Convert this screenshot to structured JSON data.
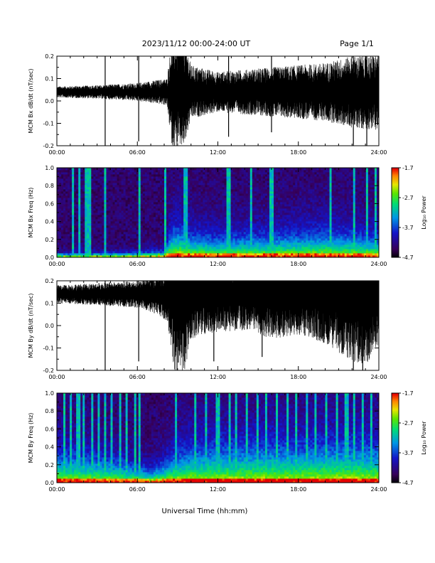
{
  "header": {
    "title": "2023/11/12  00:00-24:00 UT",
    "page": "Page 1/1"
  },
  "xlabel": "Universal Time (hh:mm)",
  "chart_data": [
    {
      "type": "line",
      "ylabel": "MCM Bx dB/dt (nT/sec)",
      "xlim": [
        0,
        24
      ],
      "ylim": [
        -0.2,
        0.2
      ],
      "x_ticks": [
        "00:00",
        "06:00",
        "12:00",
        "18:00",
        "24:00"
      ],
      "y_ticks": [
        "0.2",
        "0.1",
        "0.0",
        "-0.1",
        "-0.2"
      ],
      "baseline": 0.04,
      "envelope": [
        [
          0,
          0.025
        ],
        [
          3,
          0.03
        ],
        [
          6,
          0.04
        ],
        [
          8.2,
          0.06
        ],
        [
          8.6,
          0.25
        ],
        [
          9.5,
          0.25
        ],
        [
          10,
          0.12
        ],
        [
          12,
          0.09
        ],
        [
          14,
          0.1
        ],
        [
          16,
          0.11
        ],
        [
          18,
          0.12
        ],
        [
          20,
          0.13
        ],
        [
          22,
          0.16
        ],
        [
          24,
          0.17
        ]
      ],
      "spikes": [
        [
          3.6,
          0.25
        ],
        [
          6.1,
          0.22
        ],
        [
          12.8,
          0.2
        ],
        [
          16,
          0.18
        ],
        [
          22.1,
          0.25
        ],
        [
          23.1,
          0.25
        ]
      ]
    },
    {
      "type": "heatmap",
      "ylabel": "MCM Bx Freq (Hz)",
      "xlim": [
        0,
        24
      ],
      "ylim": [
        0.0,
        1.0
      ],
      "x_ticks": [
        "00:00",
        "06:00",
        "12:00",
        "18:00",
        "24:00"
      ],
      "y_ticks": [
        "1.0",
        "0.8",
        "0.6",
        "0.4",
        "0.2",
        "0.0"
      ],
      "colorbar": {
        "label": "Log₁₀ Power",
        "ticks": [
          "-1.7",
          "-2.7",
          "-3.7",
          "-4.7"
        ],
        "min": -4.7,
        "max": -1.7
      },
      "activity": [
        [
          0,
          0.05
        ],
        [
          6,
          0.07
        ],
        [
          8,
          0.1
        ],
        [
          8.5,
          0.4
        ],
        [
          9.2,
          0.45
        ],
        [
          10,
          0.35
        ],
        [
          12,
          0.3
        ],
        [
          14,
          0.32
        ],
        [
          16,
          0.33
        ],
        [
          18,
          0.36
        ],
        [
          20,
          0.38
        ],
        [
          22,
          0.35
        ],
        [
          24,
          0.3
        ]
      ],
      "streaks": [
        1.2,
        1.7,
        2.2,
        2.4,
        3.6,
        6.1,
        8.1,
        9.6,
        12.8,
        14.5,
        16,
        20.4,
        22.1,
        23.1,
        23.7
      ]
    },
    {
      "type": "line",
      "ylabel": "MCM By dB/dt (nT/sec)",
      "xlim": [
        0,
        24
      ],
      "ylim": [
        -0.2,
        0.2
      ],
      "x_ticks": [
        "00:00",
        "06:00",
        "12:00",
        "18:00",
        "24:00"
      ],
      "y_ticks": [
        "0.2",
        "0.1",
        "0.0",
        "-0.1",
        "-0.2"
      ],
      "baseline": 0.14,
      "envelope": [
        [
          0,
          0.04
        ],
        [
          3,
          0.05
        ],
        [
          6,
          0.06
        ],
        [
          7.5,
          0.09
        ],
        [
          8.2,
          0.12
        ],
        [
          8.8,
          0.35
        ],
        [
          9.5,
          0.35
        ],
        [
          10,
          0.2
        ],
        [
          12,
          0.17
        ],
        [
          14,
          0.16
        ],
        [
          16,
          0.2
        ],
        [
          18,
          0.18
        ],
        [
          20,
          0.22
        ],
        [
          22,
          0.3
        ],
        [
          23,
          0.32
        ],
        [
          24,
          0.25
        ]
      ],
      "spikes": [
        [
          3.6,
          0.35
        ],
        [
          6.1,
          0.3
        ],
        [
          11.7,
          0.3
        ],
        [
          15.3,
          0.28
        ],
        [
          22.1,
          0.35
        ],
        [
          22.8,
          0.35
        ]
      ]
    },
    {
      "type": "heatmap",
      "ylabel": "MCM By Freq (Hz)",
      "xlim": [
        0,
        24
      ],
      "ylim": [
        0.0,
        1.0
      ],
      "x_ticks": [
        "00:00",
        "06:00",
        "12:00",
        "18:00",
        "24:00"
      ],
      "y_ticks": [
        "1.0",
        "0.8",
        "0.6",
        "0.4",
        "0.2",
        "0.0"
      ],
      "colorbar": {
        "label": "Log₁₀ Power",
        "ticks": [
          "-1.7",
          "-2.7",
          "-3.7",
          "-4.7"
        ],
        "min": -4.7,
        "max": -1.7
      },
      "activity": [
        [
          0,
          0.45
        ],
        [
          2,
          0.4
        ],
        [
          4,
          0.35
        ],
        [
          6,
          0.25
        ],
        [
          7,
          0.2
        ],
        [
          8,
          0.3
        ],
        [
          9,
          0.45
        ],
        [
          10,
          0.5
        ],
        [
          12,
          0.55
        ],
        [
          14,
          0.55
        ],
        [
          16,
          0.58
        ],
        [
          18,
          0.55
        ],
        [
          20,
          0.58
        ],
        [
          22,
          0.6
        ],
        [
          24,
          0.55
        ]
      ],
      "streaks": [
        0.6,
        1.1,
        1.6,
        2.0,
        2.6,
        3.1,
        3.6,
        4.1,
        4.7,
        5.2,
        5.8,
        6.1,
        8.9,
        10.3,
        11.1,
        12.0,
        12.9,
        13.4,
        14.2,
        14.9,
        15.6,
        16.4,
        17.2,
        17.9,
        18.6,
        19.3,
        20.1,
        20.9,
        21.6,
        22.1,
        22.8,
        23.5
      ]
    }
  ]
}
